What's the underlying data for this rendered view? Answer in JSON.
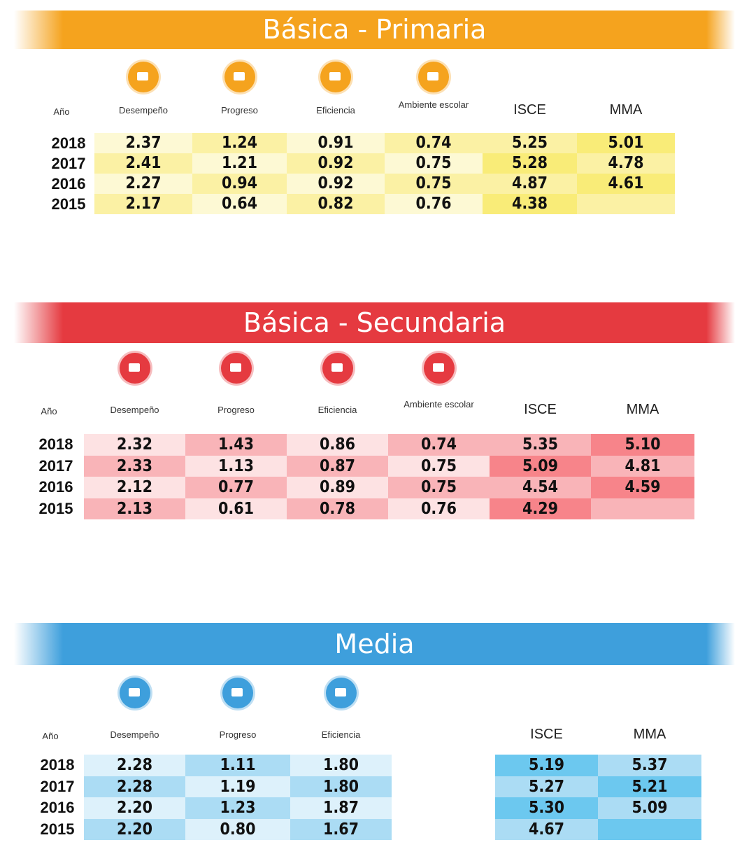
{
  "sections": [
    {
      "title": "Básica - Primaria",
      "headers": [
        "Año",
        "Desempeño",
        "Progreso",
        "Eficiencia",
        "Ambiente escolar",
        "ISCE",
        "MMA"
      ],
      "rows": [
        [
          "2018",
          "2.37",
          "1.24",
          "0.91",
          "0.74",
          "5.25",
          "5.01"
        ],
        [
          "2017",
          "2.41",
          "1.21",
          "0.92",
          "0.75",
          "5.28",
          "4.78"
        ],
        [
          "2016",
          "2.27",
          "0.94",
          "0.92",
          "0.75",
          "4.87",
          "4.61"
        ],
        [
          "2015",
          "2.17",
          "0.64",
          "0.82",
          "0.76",
          "4.38",
          null
        ]
      ]
    },
    {
      "title": "Básica - Secundaria",
      "headers": [
        "Año",
        "Desempeño",
        "Progreso",
        "Eficiencia",
        "Ambiente escolar",
        "ISCE",
        "MMA"
      ],
      "rows": [
        [
          "2018",
          "2.32",
          "1.43",
          "0.86",
          "0.74",
          "5.35",
          "5.10"
        ],
        [
          "2017",
          "2.33",
          "1.13",
          "0.87",
          "0.75",
          "5.09",
          "4.81"
        ],
        [
          "2016",
          "2.12",
          "0.77",
          "0.89",
          "0.75",
          "4.54",
          "4.59"
        ],
        [
          "2015",
          "2.13",
          "0.61",
          "0.78",
          "0.76",
          "4.29",
          null
        ]
      ]
    },
    {
      "title": "Media",
      "headers": [
        "Año",
        "Desempeño",
        "Progreso",
        "Eficiencia",
        "ISCE",
        "MMA"
      ],
      "rows": [
        [
          "2018",
          "2.28",
          "1.11",
          "1.80",
          "5.19",
          "5.37"
        ],
        [
          "2017",
          "2.28",
          "1.19",
          "1.80",
          "5.27",
          "5.21"
        ],
        [
          "2016",
          "2.20",
          "1.23",
          "1.87",
          "5.30",
          "5.09"
        ],
        [
          "2015",
          "2.20",
          "0.80",
          "1.67",
          "4.67",
          null
        ]
      ]
    }
  ]
}
